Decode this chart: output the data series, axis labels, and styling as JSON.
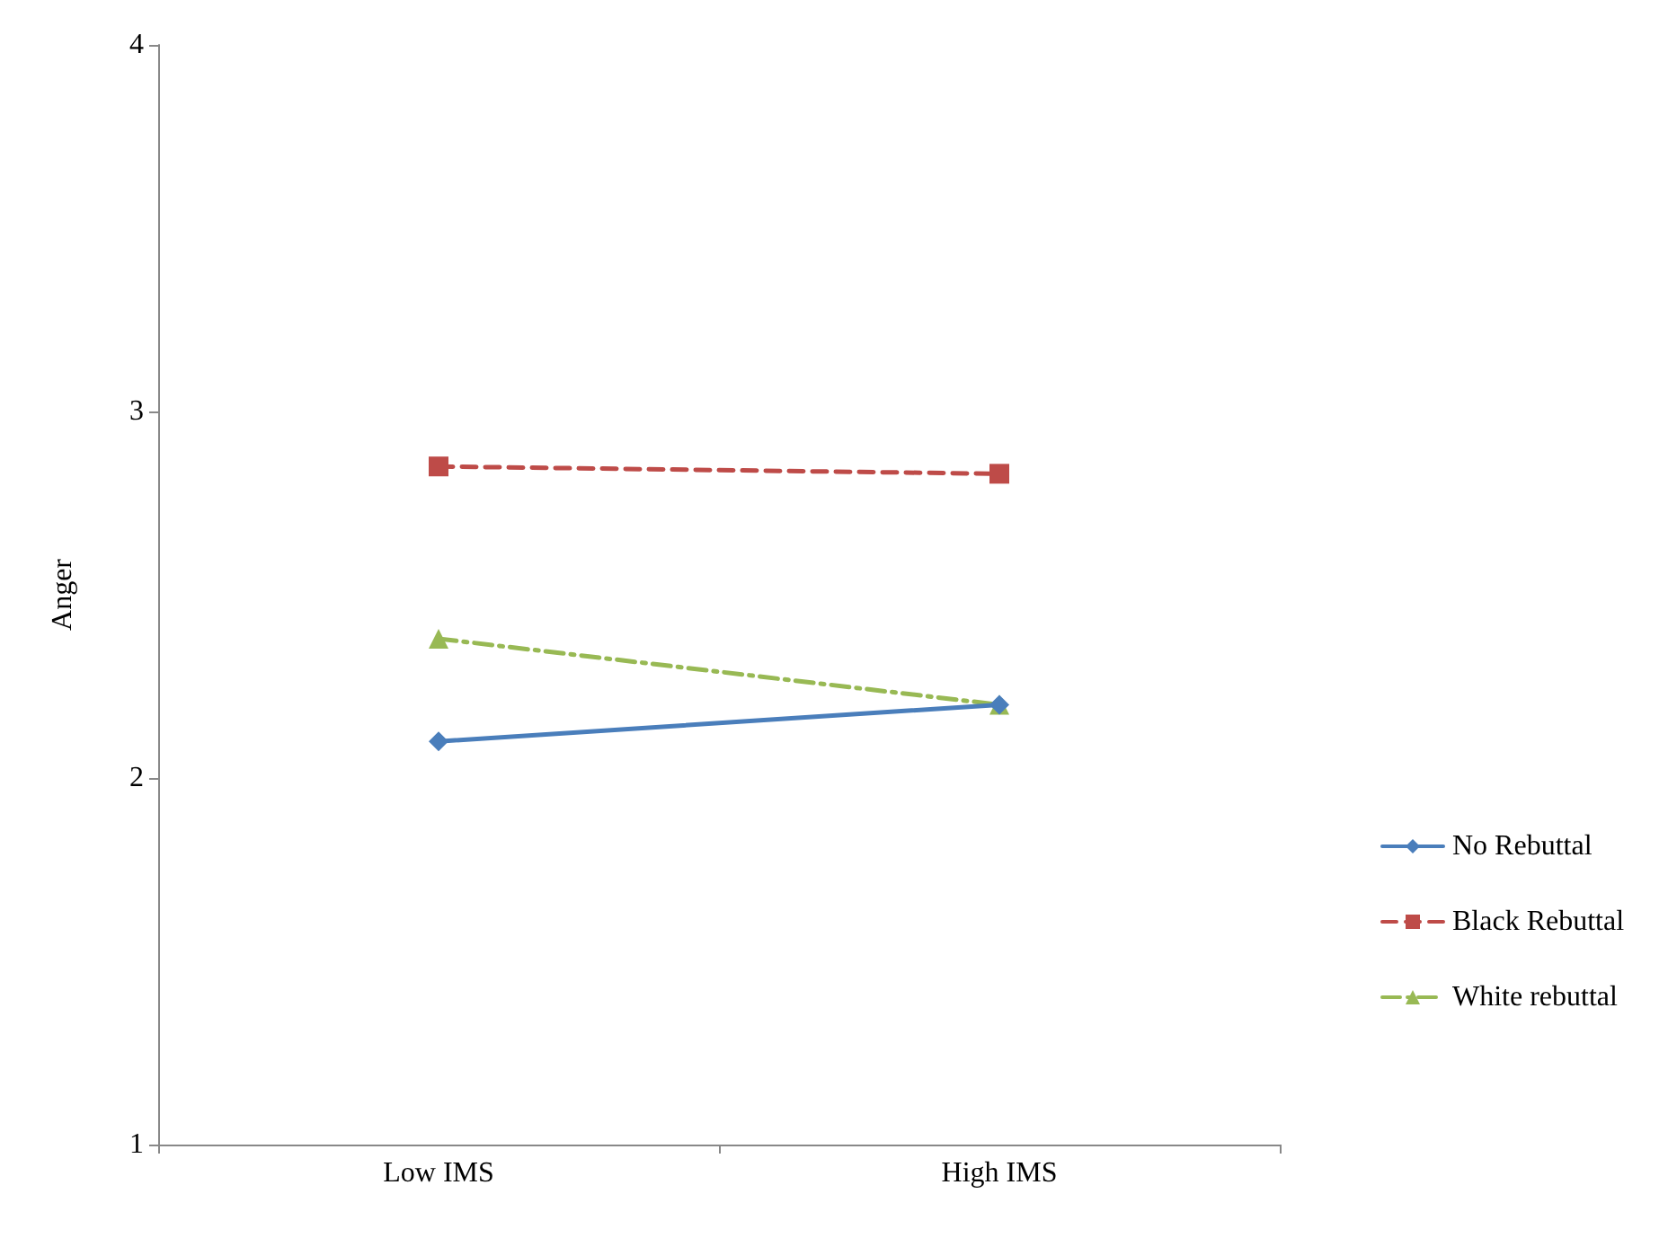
{
  "chart_data": {
    "type": "line",
    "ylabel": "Anger",
    "categories": [
      "Low IMS",
      "High IMS"
    ],
    "series": [
      {
        "name": "No Rebuttal",
        "color": "#4a7ebb",
        "values": [
          2.1,
          2.2
        ],
        "marker": "diamond",
        "line_style": "solid"
      },
      {
        "name": "Black Rebuttal",
        "color": "#be4b48",
        "values": [
          2.85,
          2.83
        ],
        "marker": "square",
        "line_style": "dashed"
      },
      {
        "name": "White rebuttal",
        "color": "#98b954",
        "values": [
          2.38,
          2.2
        ],
        "marker": "triangle",
        "line_style": "dashdot"
      }
    ],
    "ylim": [
      1,
      4
    ],
    "yticks": [
      1,
      2,
      3,
      4
    ],
    "grid": false,
    "legend": "right"
  }
}
